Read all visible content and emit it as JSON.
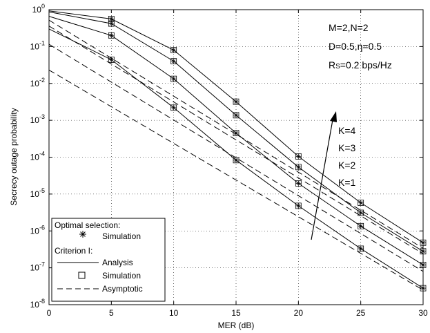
{
  "chart_data": {
    "type": "line",
    "xlabel": "MER (dB)",
    "ylabel": "Secrecy outage probability",
    "xlim": [
      0,
      30
    ],
    "ylim": [
      1e-08,
      1
    ],
    "yscale": "log",
    "grid": true,
    "x_ticks": [
      0,
      5,
      10,
      15,
      20,
      25,
      30
    ],
    "x_tick_labels": [
      "0",
      "5",
      "10",
      "15",
      "20",
      "25",
      "30"
    ],
    "y_tick_exponents": [
      0,
      -1,
      -2,
      -3,
      -4,
      -5,
      -6,
      -7,
      -8
    ],
    "y_tick_base": "10",
    "annotations": {
      "params": [
        "M=2,N=2",
        "D=0.5,η=0.5"
      ],
      "rate": {
        "prefix": "R",
        "subscript": "S",
        "suffix": "=0.2 bps/Hz"
      },
      "k_labels": [
        "K=4",
        "K=3",
        "K=2",
        "K=1"
      ]
    },
    "legend": {
      "placement": "bottom-left",
      "header_optimal": "Optimal selection:",
      "optimal_sim": "Simulation",
      "header_criterion": "Criterion I:",
      "analysis": "Analysis",
      "criterion_sim": "Simulation",
      "asymptotic": "Asymptotic"
    },
    "series": [
      {
        "k": 4,
        "analysis": {
          "x": [
            0,
            5,
            10,
            15,
            20,
            25,
            30
          ],
          "y": [
            0.93,
            0.56,
            0.08,
            0.0032,
            0.000105,
            5.8e-06,
            4.8e-07
          ]
        },
        "simulation": {
          "x": [
            5,
            10,
            15,
            20,
            25,
            30
          ],
          "y": [
            0.56,
            0.08,
            0.0032,
            0.000105,
            5.8e-06,
            4.8e-07
          ]
        },
        "asymptotic": {
          "x": [
            0,
            30
          ],
          "y": [
            0.52,
            3.4e-07
          ]
        }
      },
      {
        "k": 3,
        "analysis": {
          "x": [
            0,
            5,
            10,
            15,
            20,
            25,
            30
          ],
          "y": [
            0.87,
            0.42,
            0.04,
            0.00137,
            5.4e-05,
            3.1e-06,
            2.8e-07
          ]
        },
        "simulation": {
          "x": [
            5,
            10,
            15,
            20,
            25,
            30
          ],
          "y": [
            0.42,
            0.04,
            0.00137,
            5.4e-05,
            3.1e-06,
            2.8e-07
          ]
        },
        "asymptotic": {
          "x": [
            0,
            30
          ],
          "y": [
            0.36,
            2.4e-07
          ]
        }
      },
      {
        "k": 2,
        "analysis": {
          "x": [
            0,
            5,
            10,
            15,
            20,
            25,
            30
          ],
          "y": [
            0.66,
            0.2,
            0.0133,
            0.00045,
            1.95e-05,
            1.35e-06,
            1.2e-07
          ]
        },
        "simulation": {
          "x": [
            5,
            10,
            15,
            20,
            25,
            30
          ],
          "y": [
            0.2,
            0.0133,
            0.00045,
            1.95e-05,
            1.35e-06,
            1.2e-07
          ]
        },
        "asymptotic": {
          "x": [
            0,
            30
          ],
          "y": [
            0.115,
            8e-08
          ]
        }
      },
      {
        "k": 1,
        "analysis": {
          "x": [
            0,
            5,
            10,
            15,
            20,
            25,
            30
          ],
          "y": [
            0.3,
            0.044,
            0.0022,
            8.3e-05,
            4.8e-06,
            3.3e-07,
            2.8e-08
          ]
        },
        "simulation": {
          "x": [
            5,
            10,
            15,
            20,
            25,
            30
          ],
          "y": [
            0.044,
            0.0022,
            8.3e-05,
            4.8e-06,
            3.3e-07,
            2.8e-08
          ]
        },
        "asymptotic": {
          "x": [
            0,
            30
          ],
          "y": [
            0.023,
            2.5e-08
          ]
        }
      }
    ]
  }
}
